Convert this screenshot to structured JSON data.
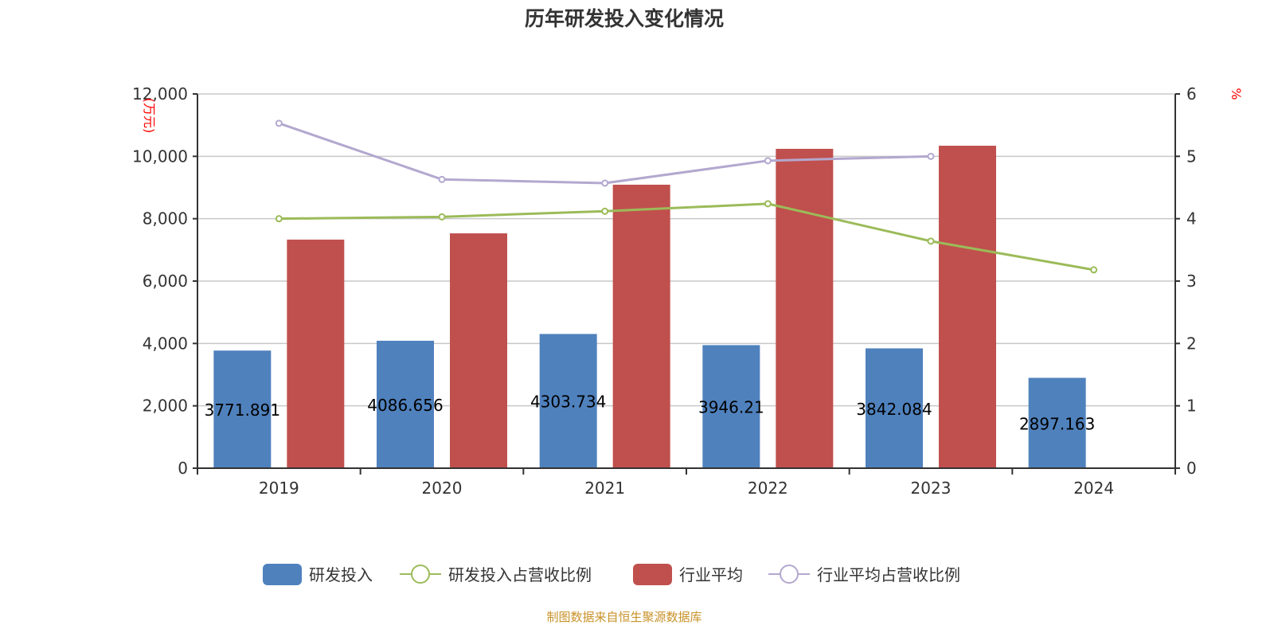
{
  "chart_data": {
    "type": "bar",
    "title": "历年研发投入变化情况",
    "categories": [
      "2019",
      "2020",
      "2021",
      "2022",
      "2023",
      "2024"
    ],
    "y_left": {
      "label": "(万元)",
      "range": [
        0,
        12000
      ],
      "ticks": [
        "0",
        "2,000",
        "4,000",
        "6,000",
        "8,000",
        "10,000",
        "12,000"
      ]
    },
    "y_right": {
      "label": "%",
      "range": [
        0,
        6
      ],
      "ticks": [
        "0",
        "1",
        "2",
        "3",
        "4",
        "5",
        "6"
      ]
    },
    "grid": true,
    "legend_position": "bottom",
    "series": [
      {
        "name": "研发投入",
        "type": "bar",
        "axis": "left",
        "color": "#4f81bd",
        "values": [
          3771.891,
          4086.656,
          4303.734,
          3946.21,
          3842.084,
          2897.163
        ],
        "labels": [
          "3771.891",
          "4086.656",
          "4303.734",
          "3946.21",
          "3842.084",
          "2897.163"
        ]
      },
      {
        "name": "研发投入占营收比例",
        "type": "line",
        "axis": "right",
        "color": "#9bbb59",
        "values": [
          4.0,
          4.03,
          4.12,
          4.24,
          3.64,
          3.18
        ]
      },
      {
        "name": "行业平均",
        "type": "bar",
        "axis": "left",
        "color": "#c0504d",
        "values": [
          7330,
          7530,
          9090,
          10240,
          10340,
          null
        ]
      },
      {
        "name": "行业平均占营收比例",
        "type": "line",
        "axis": "right",
        "color": "#b3a8cf",
        "values": [
          5.53,
          4.63,
          4.57,
          4.93,
          5.0,
          null
        ]
      }
    ]
  },
  "source": "制图数据来自恒生聚源数据库"
}
